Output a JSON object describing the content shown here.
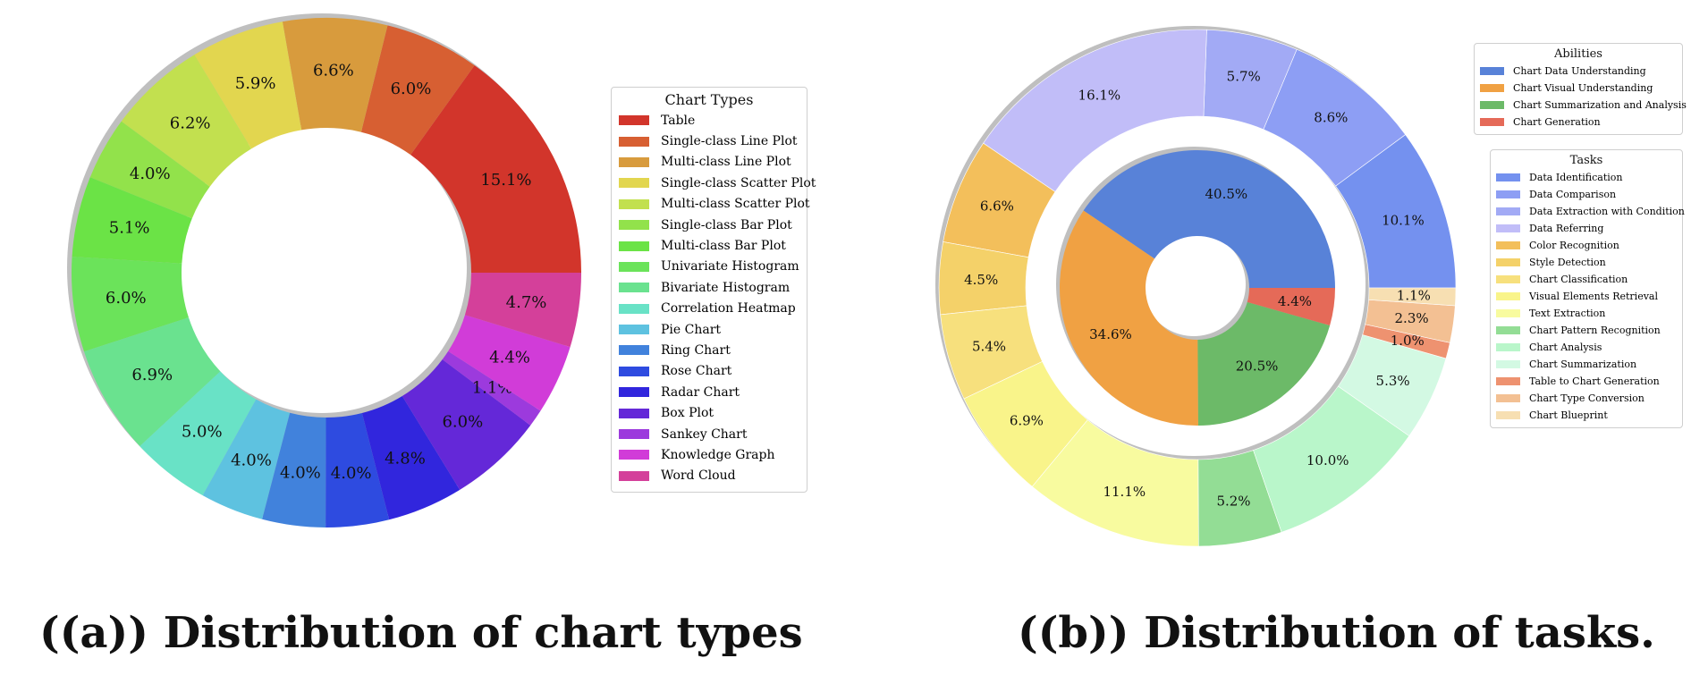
{
  "captions": {
    "a": "((a)) Distribution of chart types",
    "b": "((b)) Distribution of tasks."
  },
  "chart_data": [
    {
      "type": "pie",
      "variant": "ring",
      "legend_title": "Chart Types",
      "legend_position": "right",
      "start_angle_deg": 0,
      "direction": "counterclockwise",
      "slices": [
        {
          "label": "Table",
          "value": 15.1,
          "text": "15.1%",
          "color": "#d2352b"
        },
        {
          "label": "Single-class Line Plot",
          "value": 6.0,
          "text": "6.0%",
          "color": "#d75f32"
        },
        {
          "label": "Multi-class Line Plot",
          "value": 6.6,
          "text": "6.6%",
          "color": "#d89b3d"
        },
        {
          "label": "Single-class Scatter Plot",
          "value": 5.9,
          "text": "5.9%",
          "color": "#e2d64f"
        },
        {
          "label": "Multi-class Scatter Plot",
          "value": 6.2,
          "text": "6.2%",
          "color": "#c2e04f"
        },
        {
          "label": "Single-class Bar Plot",
          "value": 4.0,
          "text": "4.0%",
          "color": "#92e24b"
        },
        {
          "label": "Multi-class Bar Plot",
          "value": 5.1,
          "text": "5.1%",
          "color": "#6be346"
        },
        {
          "label": "Univariate Histogram",
          "value": 6.0,
          "text": "6.0%",
          "color": "#6be35a"
        },
        {
          "label": "Bivariate Histogram",
          "value": 6.9,
          "text": "6.9%",
          "color": "#6ae28f"
        },
        {
          "label": "Correlation Heatmap",
          "value": 5.0,
          "text": "5.0%",
          "color": "#69e2c6"
        },
        {
          "label": "Pie Chart",
          "value": 4.0,
          "text": "4.0%",
          "color": "#5ec2e0"
        },
        {
          "label": "Ring Chart",
          "value": 4.0,
          "text": "4.0%",
          "color": "#4182dc"
        },
        {
          "label": "Rose Chart",
          "value": 4.0,
          "text": "4.0%",
          "color": "#2e4be0"
        },
        {
          "label": "Radar Chart",
          "value": 4.8,
          "text": "4.8%",
          "color": "#3126dd"
        },
        {
          "label": "Box Plot",
          "value": 6.0,
          "text": "6.0%",
          "color": "#6428d8"
        },
        {
          "label": "Sankey Chart",
          "value": 1.1,
          "text": "1.1%",
          "color": "#9c3add"
        },
        {
          "label": "Knowledge Graph",
          "value": 4.4,
          "text": "4.4%",
          "color": "#d13cd8"
        },
        {
          "label": "Word Cloud",
          "value": 4.7,
          "text": "4.7%",
          "color": "#d4409a"
        }
      ]
    },
    {
      "type": "pie",
      "variant": "nested-ring",
      "start_angle_deg": 0,
      "direction": "counterclockwise",
      "inner": {
        "legend_title": "Abilities",
        "legend_position": "top-right",
        "slices": [
          {
            "label": "Chart Data Understanding",
            "value": 40.5,
            "text": "40.5%",
            "color": "#5882d8"
          },
          {
            "label": "Chart Visual Understanding",
            "value": 34.6,
            "text": "34.6%",
            "color": "#f0a143"
          },
          {
            "label": "Chart Summarization and Analysis",
            "value": 20.5,
            "text": "20.5%",
            "color": "#6cba68"
          },
          {
            "label": "Chart Generation",
            "value": 4.4,
            "text": "4.4%",
            "color": "#e56a58"
          }
        ]
      },
      "outer": {
        "legend_title": "Tasks",
        "legend_position": "right",
        "slices": [
          {
            "label": "Data Identification",
            "value": 10.1,
            "text": "10.1%",
            "color": "#7491ef"
          },
          {
            "label": "Data Comparison",
            "value": 8.6,
            "text": "8.6%",
            "color": "#8d9ef4"
          },
          {
            "label": "Data Extraction with Condition",
            "value": 5.7,
            "text": "5.7%",
            "color": "#a2aaf5"
          },
          {
            "label": "Data Referring",
            "value": 16.1,
            "text": "16.1%",
            "color": "#c1bdf8"
          },
          {
            "label": "Color Recognition",
            "value": 6.6,
            "text": "6.6%",
            "color": "#f3bf5b"
          },
          {
            "label": "Style Detection",
            "value": 4.5,
            "text": "4.5%",
            "color": "#f4d169"
          },
          {
            "label": "Chart Classification",
            "value": 5.4,
            "text": "5.4%",
            "color": "#f7e07d"
          },
          {
            "label": "Visual Elements Retrieval",
            "value": 6.9,
            "text": "6.9%",
            "color": "#f9f48a"
          },
          {
            "label": "Text Extraction",
            "value": 11.1,
            "text": "11.1%",
            "color": "#f8fb9f"
          },
          {
            "label": "Chart Pattern Recognition",
            "value": 5.2,
            "text": "5.2%",
            "color": "#93dd95"
          },
          {
            "label": "Chart Analysis",
            "value": 10.0,
            "text": "10.0%",
            "color": "#b9f6ca"
          },
          {
            "label": "Chart Summarization",
            "value": 5.3,
            "text": "5.3%",
            "color": "#d3f9e3"
          },
          {
            "label": "Table to Chart Generation",
            "value": 1.0,
            "text": "1.0%",
            "color": "#ee9270"
          },
          {
            "label": "Chart Type Conversion",
            "value": 2.3,
            "text": "2.3%",
            "color": "#f3c093"
          },
          {
            "label": "Chart Blueprint",
            "value": 1.1,
            "text": "1.1%",
            "color": "#f7dfb2"
          }
        ]
      }
    }
  ]
}
